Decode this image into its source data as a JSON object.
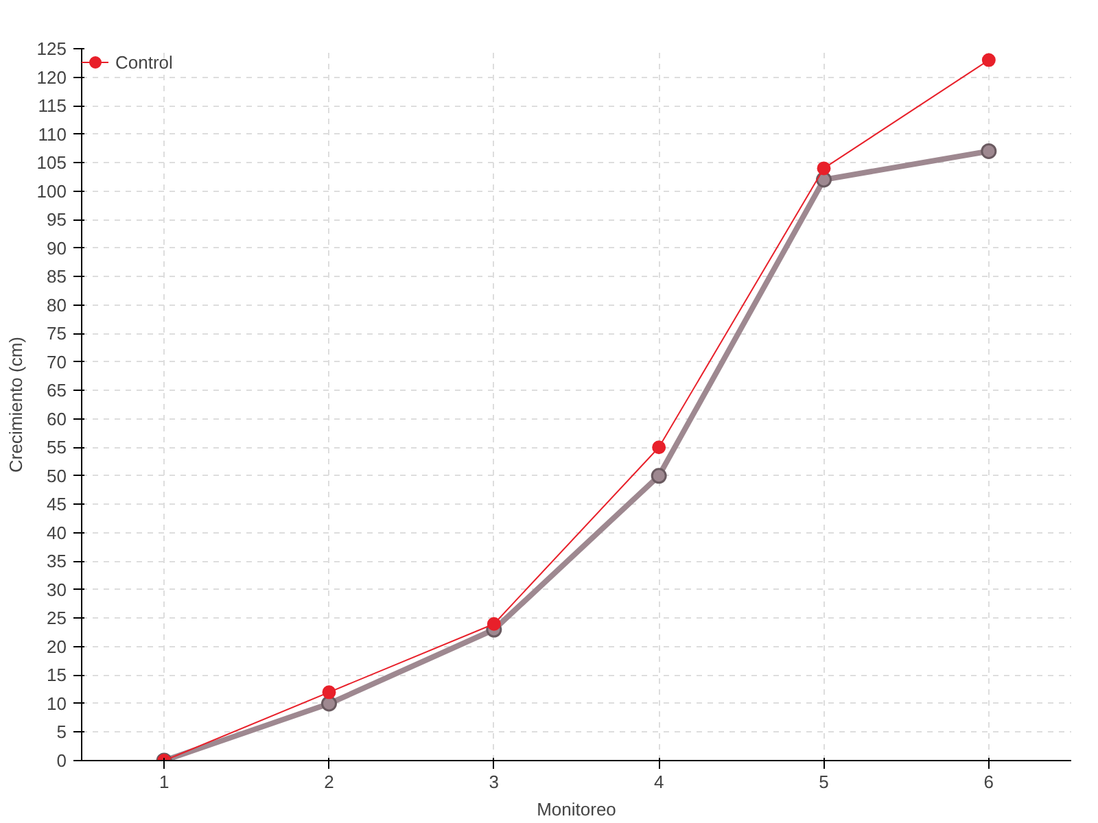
{
  "chart_data": {
    "type": "line",
    "xlabel": "Monitoreo",
    "ylabel": "Crecimiento (cm)",
    "x": [
      1,
      2,
      3,
      4,
      5,
      6
    ],
    "xlim": [
      0.5,
      6.5
    ],
    "xticks": [
      1,
      2,
      3,
      4,
      5,
      6
    ],
    "ylim": [
      0,
      125
    ],
    "yticks": [
      0,
      5,
      10,
      15,
      20,
      25,
      30,
      35,
      40,
      45,
      50,
      55,
      60,
      65,
      70,
      75,
      80,
      85,
      90,
      95,
      100,
      105,
      110,
      115,
      120,
      125
    ],
    "grid": true,
    "legend": "top left",
    "marker": "circle",
    "line_style": "solid",
    "series": [
      {
        "color": "#9e8890",
        "values": [
          0,
          10,
          23,
          50,
          102,
          107
        ]
      },
      {
        "name": "Control",
        "color": "#e8202a",
        "values": [
          0,
          12,
          24,
          55,
          104,
          123
        ]
      }
    ]
  }
}
